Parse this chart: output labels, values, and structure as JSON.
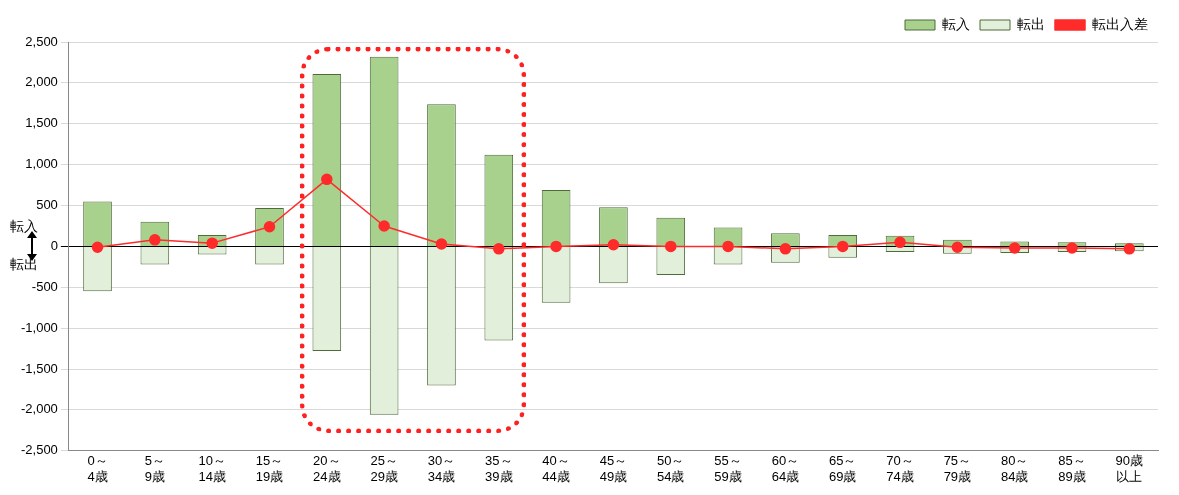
{
  "chart_data": {
    "type": "bar",
    "stacked": true,
    "categories": [
      "0～4歳",
      "5～9歳",
      "10～14歳",
      "15～19歳",
      "20～24歳",
      "25～29歳",
      "30～34歳",
      "35～39歳",
      "40～44歳",
      "45～49歳",
      "50～54歳",
      "55～59歳",
      "60～64歳",
      "65～69歳",
      "70～74歳",
      "75～79歳",
      "80～84歳",
      "85～89歳",
      "90歳以上"
    ],
    "series": [
      {
        "name": "転入",
        "color": "#a9d18e",
        "values": [
          550,
          300,
          140,
          470,
          2110,
          2320,
          1740,
          1120,
          690,
          480,
          350,
          230,
          160,
          140,
          130,
          80,
          60,
          50,
          40
        ]
      },
      {
        "name": "転出",
        "color": "#e2efda",
        "values": [
          -550,
          -220,
          -100,
          -220,
          -1280,
          -2060,
          -1700,
          -1150,
          -690,
          -450,
          -350,
          -220,
          -200,
          -140,
          -70,
          -90,
          -80,
          -70,
          -60
        ]
      },
      {
        "name": "転出入差",
        "type": "line",
        "color": "#ff2a2a",
        "values": [
          -10,
          80,
          40,
          240,
          820,
          250,
          30,
          -30,
          0,
          20,
          0,
          0,
          -30,
          0,
          50,
          -10,
          -20,
          -20,
          -30
        ]
      }
    ],
    "ylim": [
      -2500,
      2500
    ],
    "yticks": [
      {
        "value": -2500,
        "label": "-2,500"
      },
      {
        "value": -2000,
        "label": "-2,000"
      },
      {
        "value": -1500,
        "label": "-1,500"
      },
      {
        "value": -1000,
        "label": "-1,000"
      },
      {
        "value": -500,
        "label": "-500"
      },
      0,
      500,
      {
        "value": 1000,
        "label": "1,000"
      },
      {
        "value": 1500,
        "label": "1,500"
      },
      {
        "value": 2000,
        "label": "2,000"
      },
      {
        "value": 2500,
        "label": "2,500"
      }
    ],
    "annotations": [
      "転入",
      "転出"
    ],
    "grid": "y",
    "legend": "top right",
    "marker": "circle"
  }
}
